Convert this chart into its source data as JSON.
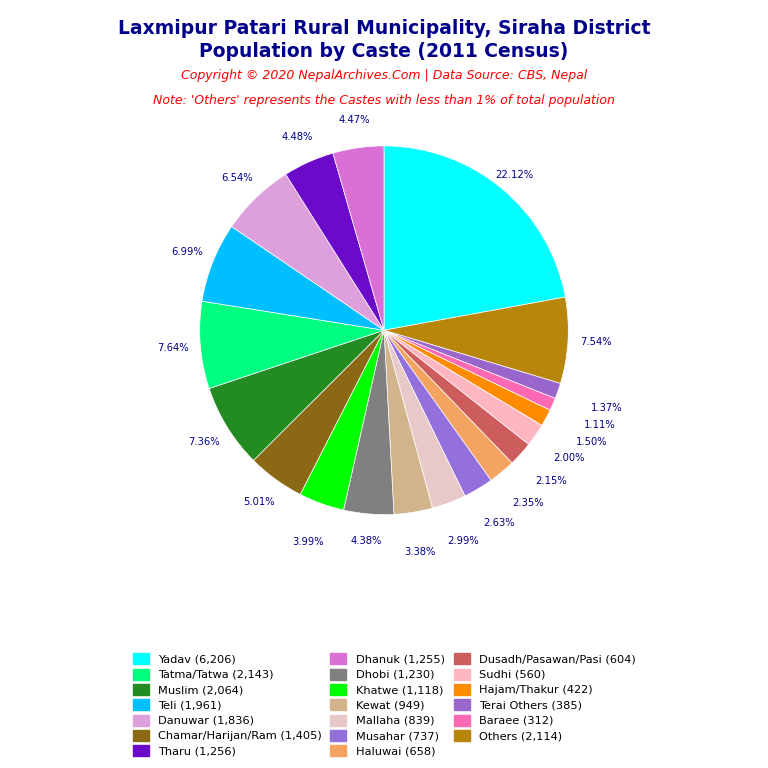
{
  "title_line1": "Laxmipur Patari Rural Municipality, Siraha District",
  "title_line2": "Population by Caste (2011 Census)",
  "copyright": "Copyright © 2020 NepalArchives.Com | Data Source: CBS, Nepal",
  "note": "Note: 'Others' represents the Castes with less than 1% of total population",
  "title_color": "#00008B",
  "copyright_color": "#FF0000",
  "note_color": "#FF0000",
  "label_color": "#00008B",
  "ordered_slices": [
    {
      "label": "Yadav (6,206)",
      "value": 22.12,
      "color": "#00FFFF"
    },
    {
      "label": "Others (2,114)",
      "value": 7.54,
      "color": "#B8860B"
    },
    {
      "label": "Terai Others (385)",
      "value": 1.37,
      "color": "#9966CC"
    },
    {
      "label": "Baraee (312)",
      "value": 1.11,
      "color": "#FF69B4"
    },
    {
      "label": "Hajam/Thakur (422)",
      "value": 1.5,
      "color": "#FF8C00"
    },
    {
      "label": "Sudhi (560)",
      "value": 2.0,
      "color": "#FFB6C1"
    },
    {
      "label": "Dusadh/Pasawan/Pasi (604)",
      "value": 2.15,
      "color": "#CD5C5C"
    },
    {
      "label": "Haluwai (658)",
      "value": 2.35,
      "color": "#F4A460"
    },
    {
      "label": "Musahar (737)",
      "value": 2.63,
      "color": "#9370DB"
    },
    {
      "label": "Mallaha (839)",
      "value": 2.99,
      "color": "#E8C8C8"
    },
    {
      "label": "Kewat (949)",
      "value": 3.38,
      "color": "#D2B48C"
    },
    {
      "label": "Dhobi (1,230)",
      "value": 4.38,
      "color": "#808080"
    },
    {
      "label": "Khatwe (1,118)",
      "value": 3.99,
      "color": "#00FF00"
    },
    {
      "label": "Chamar/Harijan/Ram (1,405)",
      "value": 5.01,
      "color": "#8B6914"
    },
    {
      "label": "Muslim (2,064)",
      "value": 7.36,
      "color": "#228B22"
    },
    {
      "label": "Tatma/Tatwa (2,143)",
      "value": 7.64,
      "color": "#00FF7F"
    },
    {
      "label": "Teli (1,961)",
      "value": 6.99,
      "color": "#00BFFF"
    },
    {
      "label": "Danuwar (1,836)",
      "value": 6.54,
      "color": "#DDA0DD"
    },
    {
      "label": "Tharu (1,256)",
      "value": 4.48,
      "color": "#6B0AC9"
    },
    {
      "label": "Dhanuk (1,255)",
      "value": 4.47,
      "color": "#DA70D6"
    }
  ],
  "legend_order": [
    {
      "label": "Yadav (6,206)",
      "color": "#00FFFF"
    },
    {
      "label": "Tatma/Tatwa (2,143)",
      "color": "#00FF7F"
    },
    {
      "label": "Muslim (2,064)",
      "color": "#228B22"
    },
    {
      "label": "Teli (1,961)",
      "color": "#00BFFF"
    },
    {
      "label": "Danuwar (1,836)",
      "color": "#DDA0DD"
    },
    {
      "label": "Chamar/Harijan/Ram (1,405)",
      "color": "#8B6914"
    },
    {
      "label": "Tharu (1,256)",
      "color": "#6B0AC9"
    },
    {
      "label": "Dhanuk (1,255)",
      "color": "#DA70D6"
    },
    {
      "label": "Dhobi (1,230)",
      "color": "#808080"
    },
    {
      "label": "Khatwe (1,118)",
      "color": "#00FF00"
    },
    {
      "label": "Kewat (949)",
      "color": "#D2B48C"
    },
    {
      "label": "Mallaha (839)",
      "color": "#E8C8C8"
    },
    {
      "label": "Musahar (737)",
      "color": "#9370DB"
    },
    {
      "label": "Haluwai (658)",
      "color": "#F4A460"
    },
    {
      "label": "Dusadh/Pasawan/Pasi (604)",
      "color": "#CD5C5C"
    },
    {
      "label": "Sudhi (560)",
      "color": "#FFB6C1"
    },
    {
      "label": "Hajam/Thakur (422)",
      "color": "#FF8C00"
    },
    {
      "label": "Terai Others (385)",
      "color": "#9966CC"
    },
    {
      "label": "Baraee (312)",
      "color": "#FF69B4"
    },
    {
      "label": "Others (2,114)",
      "color": "#B8860B"
    }
  ],
  "figsize": [
    7.68,
    7.68
  ],
  "dpi": 100
}
